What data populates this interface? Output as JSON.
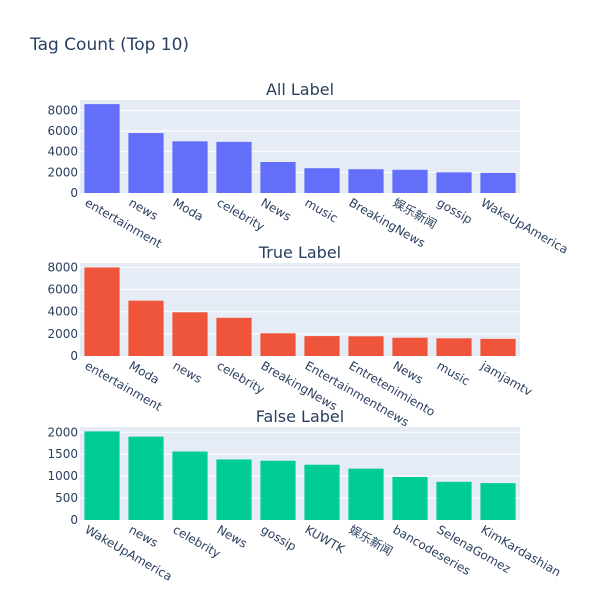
{
  "title": "Tag Count (Top 10)",
  "chart_data": [
    {
      "type": "bar",
      "title": "All Label",
      "color": "#636efa",
      "categories": [
        "entertainment",
        "news",
        "Moda",
        "celebrity",
        "News",
        "music",
        "BreakingNews",
        "娱乐新闻",
        "gossip",
        "WakeUpAmerica"
      ],
      "values": [
        8600,
        5800,
        5000,
        4950,
        3000,
        2400,
        2300,
        2250,
        2000,
        1950
      ],
      "ylim": [
        0,
        9000
      ],
      "yticks": [
        0,
        2000,
        4000,
        6000,
        8000
      ],
      "xlabel": "",
      "ylabel": ""
    },
    {
      "type": "bar",
      "title": "True Label",
      "color": "#ef553b",
      "categories": [
        "entertainment",
        "Moda",
        "news",
        "celebrity",
        "BreakingNews",
        "Entertainmentnews",
        "Entretenimiento",
        "News",
        "music",
        "jamjamtv"
      ],
      "values": [
        8000,
        5000,
        3950,
        3450,
        2050,
        1800,
        1780,
        1650,
        1600,
        1550
      ],
      "ylim": [
        0,
        8400
      ],
      "yticks": [
        0,
        2000,
        4000,
        6000,
        8000
      ],
      "xlabel": "",
      "ylabel": ""
    },
    {
      "type": "bar",
      "title": "False Label",
      "color": "#00cc96",
      "categories": [
        "WakeUpAmerica",
        "news",
        "celebrity",
        "News",
        "gossip",
        "KUWTK",
        "娱乐新闻",
        "bancodeseries",
        "SelenaGomez",
        "KimKardashian"
      ],
      "values": [
        2020,
        1900,
        1560,
        1380,
        1350,
        1260,
        1170,
        980,
        870,
        840
      ],
      "ylim": [
        0,
        2120
      ],
      "yticks": [
        0,
        500,
        1000,
        1500,
        2000
      ],
      "xlabel": "",
      "ylabel": ""
    }
  ]
}
